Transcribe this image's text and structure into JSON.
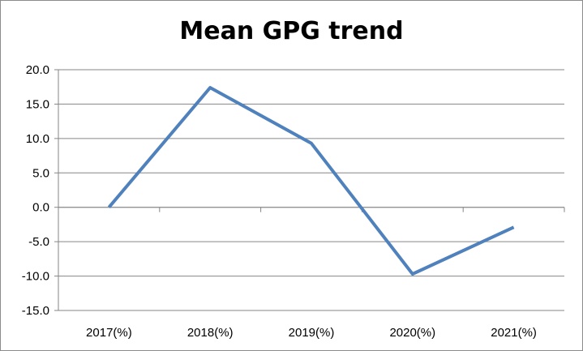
{
  "chart_data": {
    "type": "line",
    "title": "Mean GPG trend",
    "xlabel": "",
    "ylabel": "",
    "categories": [
      "2017(%)",
      "2018(%)",
      "2019(%)",
      "2020(%)",
      "2021(%)"
    ],
    "series": [
      {
        "values": [
          0.0,
          17.4,
          9.3,
          -9.7,
          -2.9
        ],
        "color": "#4f81bd"
      }
    ],
    "ylim": [
      -15.0,
      20.0
    ],
    "yticks": [
      "20.0",
      "15.0",
      "10.0",
      "5.0",
      "0.0",
      "-5.0",
      "-10.0",
      "-15.0"
    ],
    "grid": true,
    "legend": "none"
  }
}
